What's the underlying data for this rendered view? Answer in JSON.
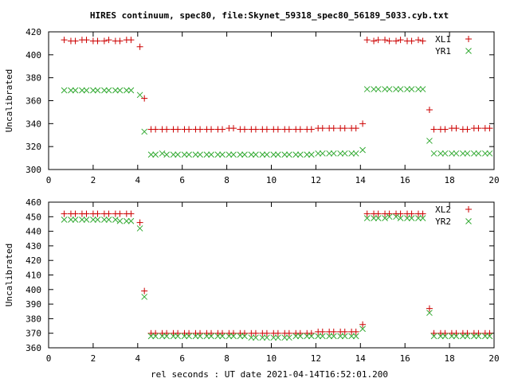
{
  "title": "HIRES continuum, spec80, file:Skynet_59318_spec80_56189_5033.cyb.txt",
  "xlabel": "rel seconds : UT date 2021-04-14T16:52:01.200",
  "colors": {
    "red": "#cc0000",
    "green": "#33aa33",
    "axis": "#000000"
  },
  "chart_data": [
    {
      "type": "scatter",
      "ylabel": "Uncalibrated",
      "xlim": [
        0,
        20
      ],
      "ylim": [
        300,
        420
      ],
      "xticks": [
        0,
        2,
        4,
        6,
        8,
        10,
        12,
        14,
        16,
        18,
        20
      ],
      "yticks": [
        300,
        320,
        340,
        360,
        380,
        400,
        420
      ],
      "legend_position": "top-right",
      "series": [
        {
          "name": "XL1",
          "marker": "plus",
          "color": "#cc0000",
          "x": [
            0.7,
            1.0,
            1.2,
            1.5,
            1.7,
            2.0,
            2.2,
            2.5,
            2.7,
            3.0,
            3.2,
            3.5,
            3.7,
            4.1,
            4.3,
            4.6,
            4.8,
            5.1,
            5.3,
            5.6,
            5.8,
            6.1,
            6.3,
            6.6,
            6.8,
            7.1,
            7.3,
            7.6,
            7.8,
            8.1,
            8.3,
            8.6,
            8.8,
            9.1,
            9.3,
            9.6,
            9.8,
            10.1,
            10.3,
            10.6,
            10.8,
            11.1,
            11.3,
            11.6,
            11.8,
            12.1,
            12.3,
            12.6,
            12.8,
            13.1,
            13.3,
            13.6,
            13.8,
            14.1,
            14.3,
            14.6,
            14.8,
            15.1,
            15.3,
            15.6,
            15.8,
            16.1,
            16.3,
            16.6,
            16.8,
            17.1,
            17.3,
            17.6,
            17.8,
            18.1,
            18.3,
            18.6,
            18.8,
            19.1,
            19.3,
            19.6,
            19.8
          ],
          "y": [
            413,
            412,
            412,
            413,
            413,
            412,
            412,
            412,
            413,
            412,
            412,
            413,
            413,
            407,
            362,
            335,
            335,
            335,
            335,
            335,
            335,
            335,
            335,
            335,
            335,
            335,
            335,
            335,
            335,
            336,
            336,
            335,
            335,
            335,
            335,
            335,
            335,
            335,
            335,
            335,
            335,
            335,
            335,
            335,
            335,
            336,
            336,
            336,
            336,
            336,
            336,
            336,
            336,
            340,
            413,
            412,
            413,
            413,
            412,
            412,
            413,
            412,
            412,
            413,
            412,
            352,
            335,
            335,
            335,
            336,
            336,
            335,
            335,
            336,
            336,
            336,
            336
          ]
        },
        {
          "name": "YR1",
          "marker": "cross",
          "color": "#33aa33",
          "x": [
            0.7,
            1.0,
            1.2,
            1.5,
            1.7,
            2.0,
            2.2,
            2.5,
            2.7,
            3.0,
            3.2,
            3.5,
            3.7,
            4.1,
            4.3,
            4.6,
            4.8,
            5.1,
            5.3,
            5.6,
            5.8,
            6.1,
            6.3,
            6.6,
            6.8,
            7.1,
            7.3,
            7.6,
            7.8,
            8.1,
            8.3,
            8.6,
            8.8,
            9.1,
            9.3,
            9.6,
            9.8,
            10.1,
            10.3,
            10.6,
            10.8,
            11.1,
            11.3,
            11.6,
            11.8,
            12.1,
            12.3,
            12.6,
            12.8,
            13.1,
            13.3,
            13.6,
            13.8,
            14.1,
            14.3,
            14.6,
            14.8,
            15.1,
            15.3,
            15.6,
            15.8,
            16.1,
            16.3,
            16.6,
            16.8,
            17.1,
            17.3,
            17.6,
            17.8,
            18.1,
            18.3,
            18.6,
            18.8,
            19.1,
            19.3,
            19.6,
            19.8
          ],
          "y": [
            369,
            369,
            369,
            369,
            369,
            369,
            369,
            369,
            369,
            369,
            369,
            369,
            369,
            365,
            333,
            313,
            313,
            314,
            313,
            313,
            313,
            313,
            313,
            313,
            313,
            313,
            313,
            313,
            313,
            313,
            313,
            313,
            313,
            313,
            313,
            313,
            313,
            313,
            313,
            313,
            313,
            313,
            313,
            313,
            313,
            314,
            314,
            314,
            314,
            314,
            314,
            314,
            314,
            317,
            370,
            370,
            370,
            370,
            370,
            370,
            370,
            370,
            370,
            370,
            370,
            325,
            314,
            314,
            314,
            314,
            314,
            314,
            314,
            314,
            314,
            314,
            314
          ]
        }
      ]
    },
    {
      "type": "scatter",
      "ylabel": "Uncalibrated",
      "xlim": [
        0,
        20
      ],
      "ylim": [
        360,
        460
      ],
      "xticks": [
        0,
        2,
        4,
        6,
        8,
        10,
        12,
        14,
        16,
        18,
        20
      ],
      "yticks": [
        360,
        370,
        380,
        390,
        400,
        410,
        420,
        430,
        440,
        450,
        460
      ],
      "legend_position": "top-right",
      "series": [
        {
          "name": "XL2",
          "marker": "plus",
          "color": "#cc0000",
          "x": [
            0.7,
            1.0,
            1.2,
            1.5,
            1.7,
            2.0,
            2.2,
            2.5,
            2.7,
            3.0,
            3.2,
            3.5,
            3.7,
            4.1,
            4.3,
            4.6,
            4.8,
            5.1,
            5.3,
            5.6,
            5.8,
            6.1,
            6.3,
            6.6,
            6.8,
            7.1,
            7.3,
            7.6,
            7.8,
            8.1,
            8.3,
            8.6,
            8.8,
            9.1,
            9.3,
            9.6,
            9.8,
            10.1,
            10.3,
            10.6,
            10.8,
            11.1,
            11.3,
            11.6,
            11.8,
            12.1,
            12.3,
            12.6,
            12.8,
            13.1,
            13.3,
            13.6,
            13.8,
            14.1,
            14.3,
            14.6,
            14.8,
            15.1,
            15.3,
            15.6,
            15.8,
            16.1,
            16.3,
            16.6,
            16.8,
            17.1,
            17.3,
            17.6,
            17.8,
            18.1,
            18.3,
            18.6,
            18.8,
            19.1,
            19.3,
            19.6,
            19.8
          ],
          "y": [
            452,
            452,
            452,
            452,
            452,
            452,
            452,
            452,
            452,
            452,
            452,
            452,
            452,
            446,
            399,
            370,
            370,
            370,
            370,
            370,
            370,
            370,
            370,
            370,
            370,
            370,
            370,
            370,
            370,
            370,
            370,
            370,
            370,
            370,
            370,
            370,
            370,
            370,
            370,
            370,
            370,
            370,
            370,
            370,
            370,
            371,
            371,
            371,
            371,
            371,
            371,
            371,
            371,
            376,
            452,
            452,
            452,
            452,
            452,
            452,
            452,
            452,
            452,
            452,
            452,
            387,
            370,
            370,
            370,
            370,
            370,
            370,
            370,
            370,
            370,
            370,
            370
          ]
        },
        {
          "name": "YR2",
          "marker": "cross",
          "color": "#33aa33",
          "x": [
            0.7,
            1.0,
            1.2,
            1.5,
            1.7,
            2.0,
            2.2,
            2.5,
            2.7,
            3.0,
            3.2,
            3.5,
            3.7,
            4.1,
            4.3,
            4.6,
            4.8,
            5.1,
            5.3,
            5.6,
            5.8,
            6.1,
            6.3,
            6.6,
            6.8,
            7.1,
            7.3,
            7.6,
            7.8,
            8.1,
            8.3,
            8.6,
            8.8,
            9.1,
            9.3,
            9.6,
            9.8,
            10.1,
            10.3,
            10.6,
            10.8,
            11.1,
            11.3,
            11.6,
            11.8,
            12.1,
            12.3,
            12.6,
            12.8,
            13.1,
            13.3,
            13.6,
            13.8,
            14.1,
            14.3,
            14.6,
            14.8,
            15.1,
            15.3,
            15.6,
            15.8,
            16.1,
            16.3,
            16.6,
            16.8,
            17.1,
            17.3,
            17.6,
            17.8,
            18.1,
            18.3,
            18.6,
            18.8,
            19.1,
            19.3,
            19.6,
            19.8
          ],
          "y": [
            448,
            448,
            448,
            448,
            448,
            448,
            448,
            448,
            448,
            448,
            447,
            447,
            447,
            442,
            395,
            368,
            368,
            368,
            368,
            368,
            368,
            368,
            368,
            368,
            368,
            368,
            368,
            368,
            368,
            368,
            368,
            368,
            368,
            367,
            367,
            367,
            367,
            367,
            367,
            367,
            367,
            368,
            368,
            368,
            368,
            368,
            368,
            368,
            368,
            368,
            368,
            368,
            368,
            373,
            449,
            449,
            449,
            449,
            450,
            450,
            449,
            449,
            449,
            449,
            449,
            384,
            368,
            368,
            368,
            368,
            368,
            368,
            368,
            368,
            368,
            368,
            368
          ]
        }
      ]
    }
  ]
}
